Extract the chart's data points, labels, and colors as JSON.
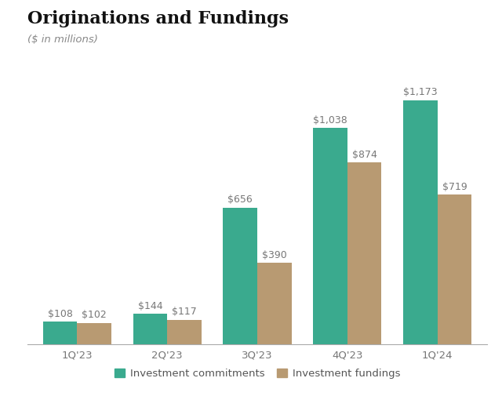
{
  "title": "Originations and Fundings",
  "subtitle": "($ in millions)",
  "categories": [
    "1Q'23",
    "2Q'23",
    "3Q'23",
    "4Q'23",
    "1Q'24"
  ],
  "commitments": [
    108,
    144,
    656,
    1038,
    1173
  ],
  "fundings": [
    102,
    117,
    390,
    874,
    719
  ],
  "commitment_labels": [
    "$108",
    "$144",
    "$656",
    "$1,038",
    "$1,173"
  ],
  "funding_labels": [
    "$102",
    "$117",
    "$390",
    "$874",
    "$719"
  ],
  "bar_color_green": "#3aaa8e",
  "bar_color_tan": "#b89a72",
  "background_color": "#ffffff",
  "title_fontsize": 16,
  "subtitle_fontsize": 9.5,
  "label_fontsize": 9,
  "tick_fontsize": 9.5,
  "legend_fontsize": 9.5,
  "bar_width": 0.38,
  "ylim": [
    0,
    1380
  ]
}
